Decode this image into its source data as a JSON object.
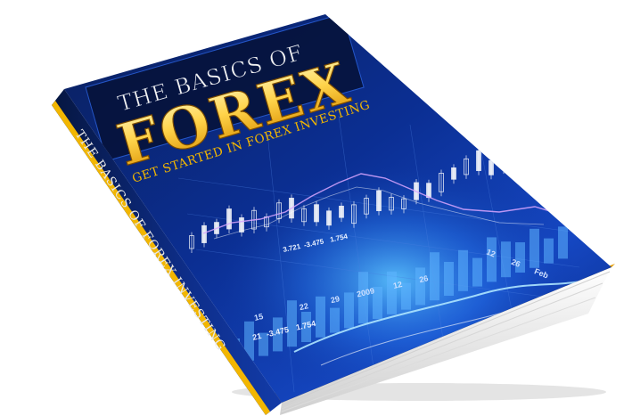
{
  "book": {
    "title_line1": "THE BASICS OF",
    "title_main": "FOREX",
    "subtitle": "GET STARTED IN FOREX INVESTING",
    "spine_text": "THE BASICS OF FOREX INVESTING"
  },
  "chart_labels": {
    "top_ticks": [
      "12",
      "26",
      "Feb"
    ],
    "bottom_ticks": [
      "15",
      "22",
      "29",
      "2009",
      "12",
      "26"
    ],
    "readout_upper": [
      "3.721",
      "-3.475",
      "1.754"
    ],
    "readout_lower": [
      "21",
      "-3.475",
      "1.754"
    ]
  },
  "colors": {
    "cover_blue_dark": "#061a4d",
    "cover_blue": "#1a4fc4",
    "cover_glow": "#3fb2ff",
    "gold": "#f2b600",
    "gold_edge": "#e39b00",
    "title_white": "#f4f4f4",
    "page_edge": "#ededed"
  }
}
